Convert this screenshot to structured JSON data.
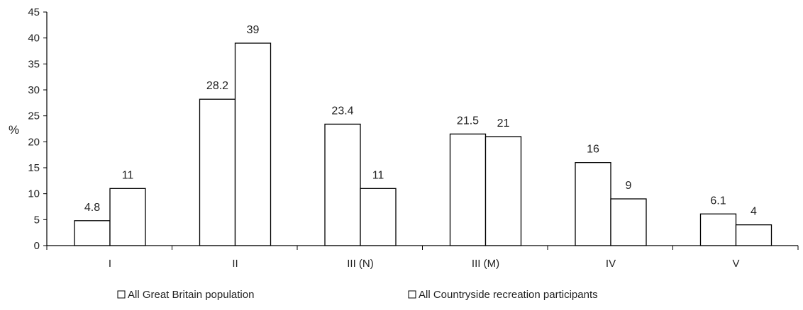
{
  "chart_data": {
    "type": "bar",
    "ylabel": "%",
    "ylim": [
      0,
      45
    ],
    "yticks": [
      0,
      5,
      10,
      15,
      20,
      25,
      30,
      35,
      40,
      45
    ],
    "categories": [
      "I",
      "II",
      "III (N)",
      "III (M)",
      "IV",
      "V"
    ],
    "series": [
      {
        "name": "All Great Britain population",
        "values": [
          4.8,
          28.2,
          23.4,
          21.5,
          16,
          6.1
        ],
        "labels": [
          "4.8",
          "28.2",
          "23.4",
          "21.5",
          "16",
          "6.1"
        ]
      },
      {
        "name": "All Countryside recreation participants",
        "values": [
          11,
          39,
          11,
          21,
          9,
          4
        ],
        "labels": [
          "11",
          "39",
          "11",
          "21",
          "9",
          "4"
        ]
      }
    ],
    "grid": false,
    "legend_position": "bottom",
    "colors": {
      "bar_fill": "#ffffff",
      "bar_stroke": "#000000"
    }
  }
}
